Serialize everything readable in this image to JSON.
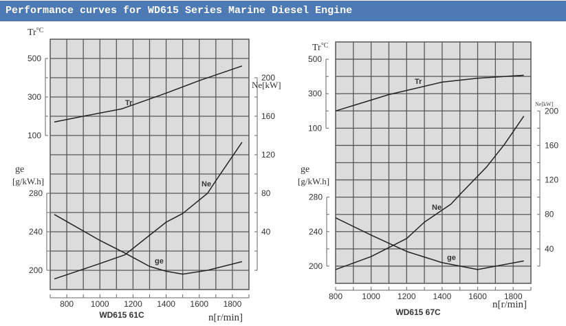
{
  "header": {
    "title": "Performance curves for WD615 Series Marine Diesel Engine"
  },
  "colors": {
    "title_bar": "#4d7ab4",
    "plot_background": "#dcdcdc",
    "grid": "#555555",
    "curve": "#222222"
  },
  "chart_data": [
    {
      "type": "line",
      "model": "WD615 61C",
      "xlabel": "n[r/min]",
      "xlim": [
        700,
        1900
      ],
      "x_ticks": [
        800,
        1000,
        1200,
        1400,
        1600,
        1800
      ],
      "grid": true,
      "axes": {
        "tr": {
          "label": "Tr",
          "unit": "°C",
          "ticks": [
            100,
            300,
            500
          ],
          "range": [
            100,
            500
          ]
        },
        "ge": {
          "label": "ge",
          "unit": "[g/kW.h]",
          "ticks": [
            200,
            240,
            280
          ],
          "range": [
            200,
            280
          ]
        },
        "ne": {
          "label": "Ne[kW]",
          "ticks": [
            40,
            80,
            120,
            160,
            200
          ],
          "range": [
            0,
            200
          ]
        }
      },
      "series": [
        {
          "name": "Tr",
          "axis": "tr",
          "points": [
            [
              725,
              170
            ],
            [
              900,
              200
            ],
            [
              1130,
              238
            ],
            [
              1400,
              320
            ],
            [
              1600,
              385
            ],
            [
              1858,
              461
            ]
          ]
        },
        {
          "name": "Ne",
          "axis": "ne",
          "points": [
            [
              725,
              -9
            ],
            [
              1000,
              7
            ],
            [
              1150,
              16
            ],
            [
              1400,
              50
            ],
            [
              1500,
              59
            ],
            [
              1650,
              80
            ],
            [
              1700,
              93
            ],
            [
              1858,
              133
            ]
          ]
        },
        {
          "name": "ge",
          "axis": "ge",
          "points": [
            [
              725,
              258
            ],
            [
              1000,
              231
            ],
            [
              1150,
              218
            ],
            [
              1300,
              204
            ],
            [
              1400,
              199
            ],
            [
              1500,
              196
            ],
            [
              1650,
              200
            ],
            [
              1858,
              209
            ]
          ]
        }
      ]
    },
    {
      "type": "line",
      "model": "WD615 67C",
      "xlabel": "n[r/min]",
      "xlim": [
        800,
        1900
      ],
      "x_ticks": [
        800,
        1000,
        1200,
        1400,
        1600,
        1800
      ],
      "grid": true,
      "axes": {
        "tr": {
          "label": "Tr",
          "unit": "°C",
          "ticks": [
            100,
            300,
            500
          ],
          "range": [
            100,
            500
          ]
        },
        "ge": {
          "label": "ge",
          "unit": "[g/kW.h]",
          "ticks": [
            200,
            240,
            280
          ],
          "range": [
            200,
            280
          ]
        },
        "ne": {
          "label": "Ne[kW]",
          "ticks": [
            40,
            80,
            120,
            160,
            200
          ],
          "range": [
            20,
            200
          ]
        }
      },
      "series": [
        {
          "name": "Tr",
          "axis": "tr",
          "points": [
            [
              800,
              200
            ],
            [
              1000,
              263
            ],
            [
              1100,
              295
            ],
            [
              1200,
              319
            ],
            [
              1400,
              367
            ],
            [
              1600,
              390
            ],
            [
              1860,
              407
            ]
          ]
        },
        {
          "name": "Ne",
          "axis": "ne",
          "points": [
            [
              800,
              16
            ],
            [
              1000,
              31
            ],
            [
              1200,
              52
            ],
            [
              1300,
              71
            ],
            [
              1450,
              92
            ],
            [
              1500,
              103
            ],
            [
              1650,
              135
            ],
            [
              1750,
              161
            ],
            [
              1860,
              194
            ]
          ]
        },
        {
          "name": "ge",
          "axis": "ge",
          "points": [
            [
              800,
              256
            ],
            [
              1000,
              236
            ],
            [
              1200,
              217
            ],
            [
              1400,
              204
            ],
            [
              1600,
              196
            ],
            [
              1860,
              206
            ]
          ]
        }
      ]
    }
  ]
}
